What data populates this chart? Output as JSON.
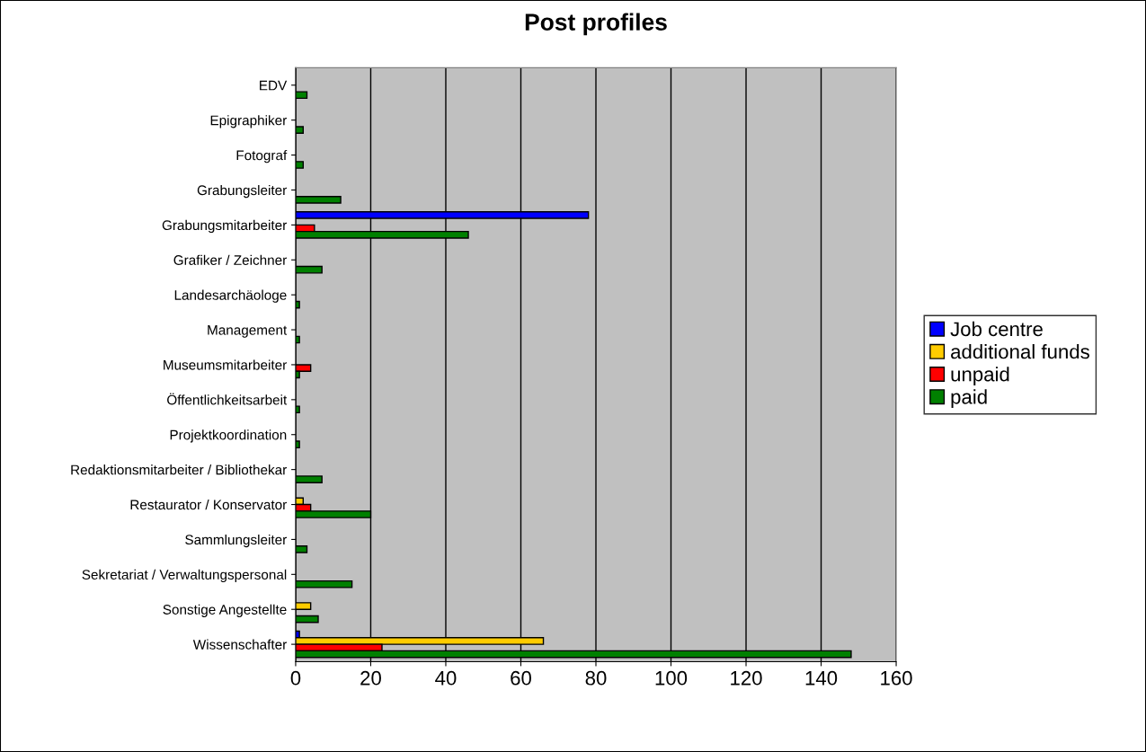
{
  "chart_data": {
    "type": "bar",
    "orientation": "horizontal",
    "title": "Post profiles",
    "categories": [
      "EDV",
      "Epigraphiker",
      "Fotograf",
      "Grabungsleiter",
      "Grabungsmitarbeiter",
      "Grafiker / Zeichner",
      "Landesarchäologe",
      "Management",
      "Museumsmitarbeiter",
      "Öffentlichkeitsarbeit",
      "Projektkoordination",
      "Redaktionsmitarbeiter / Bibliothekar",
      "Restaurator / Konservator",
      "Sammlungsleiter",
      "Sekretariat / Verwaltungspersonal",
      "Sonstige Angestellte",
      "Wissenschafter"
    ],
    "series": [
      {
        "name": "Job centre",
        "color": "#0000ff",
        "values": [
          null,
          null,
          null,
          null,
          78,
          null,
          null,
          null,
          null,
          null,
          null,
          null,
          null,
          null,
          null,
          null,
          1
        ]
      },
      {
        "name": "additional funds",
        "color": "#ffcc00",
        "values": [
          null,
          null,
          null,
          null,
          null,
          null,
          null,
          null,
          null,
          null,
          null,
          null,
          2,
          null,
          null,
          4,
          66
        ]
      },
      {
        "name": "unpaid",
        "color": "#ff0000",
        "values": [
          null,
          null,
          null,
          null,
          5,
          null,
          null,
          null,
          4,
          null,
          null,
          null,
          4,
          null,
          null,
          null,
          23
        ]
      },
      {
        "name": "paid",
        "color": "#008000",
        "values": [
          3,
          2,
          2,
          12,
          46,
          7,
          1,
          1,
          1,
          1,
          1,
          7,
          20,
          3,
          15,
          6,
          148
        ]
      }
    ],
    "xlim": [
      0,
      160
    ],
    "xticks": [
      0,
      20,
      40,
      60,
      80,
      100,
      120,
      140,
      160
    ],
    "grid": "x",
    "legend": "right"
  }
}
